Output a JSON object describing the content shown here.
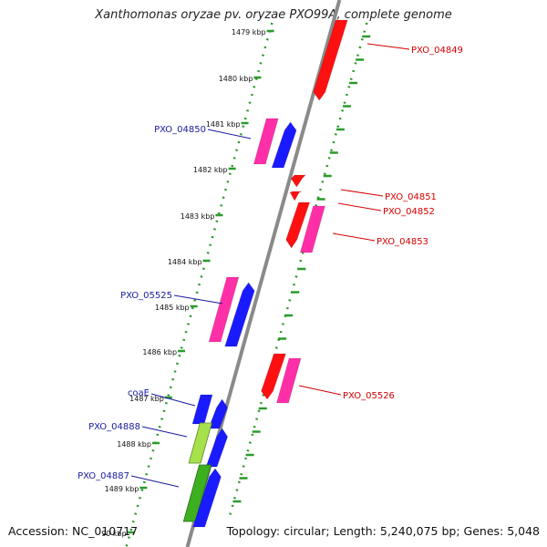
{
  "title": "Xanthomonas oryzae pv. oryzae PXO99A, complete genome",
  "footer": {
    "accession": "Accession: NC_010717",
    "topology": "Topology: circular; Length: 5,240,075 bp; Genes: 5,048"
  },
  "colors": {
    "backbone": "#8a8a8a",
    "ruler": "#2b9a2b",
    "forward_label": "#d40000",
    "reverse_label": "#1a1aa0",
    "red_gene": "#ff1010",
    "magenta_gene": "#ff2fa8",
    "blue_gene": "#1a1aff",
    "green_gene": "#3cb01e",
    "lime_gene": "#a6e04a"
  },
  "ticks": [
    {
      "label": "1479 kbp"
    },
    {
      "label": "1480 kbp"
    },
    {
      "label": "1481 kbp"
    },
    {
      "label": "1482 kbp"
    },
    {
      "label": "1483 kbp"
    },
    {
      "label": "1484 kbp"
    },
    {
      "label": "1485 kbp"
    },
    {
      "label": "1486 kbp"
    },
    {
      "label": "1487 kbp"
    },
    {
      "label": "1488 kbp"
    },
    {
      "label": "1489 kbp"
    },
    {
      "label": "90 kbp"
    }
  ],
  "gene_labels": [
    {
      "name": "PXO_04849",
      "strand": "forward"
    },
    {
      "name": "PXO_04850",
      "strand": "reverse"
    },
    {
      "name": "PXO_04851",
      "strand": "forward"
    },
    {
      "name": "PXO_04852",
      "strand": "forward"
    },
    {
      "name": "PXO_04853",
      "strand": "forward"
    },
    {
      "name": "PXO_05525",
      "strand": "reverse"
    },
    {
      "name": "PXO_05526",
      "strand": "forward"
    },
    {
      "name": "coaE",
      "strand": "reverse"
    },
    {
      "name": "PXO_04888",
      "strand": "reverse"
    },
    {
      "name": "PXO_04887",
      "strand": "reverse"
    }
  ]
}
